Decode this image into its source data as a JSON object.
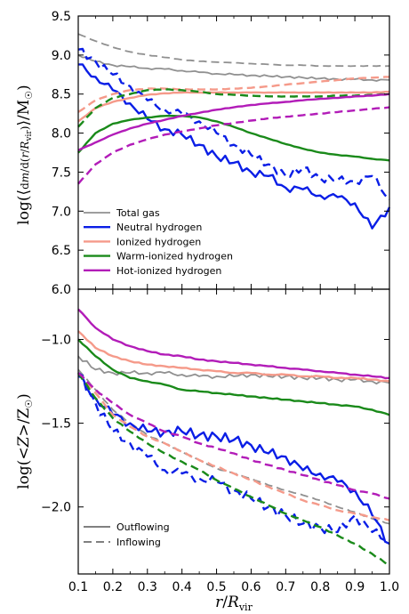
{
  "chart_data": [
    {
      "type": "line",
      "panel": "top",
      "ylabel": "log(⟨dm/d(r/R_vir)⟩/M☉)",
      "ylim": [
        6.0,
        9.5
      ],
      "yticks": [
        "6.0",
        "6.5",
        "7.0",
        "7.5",
        "8.0",
        "8.5",
        "9.0",
        "9.5"
      ],
      "x": [
        0.1,
        0.15,
        0.2,
        0.25,
        0.3,
        0.35,
        0.4,
        0.45,
        0.5,
        0.55,
        0.6,
        0.65,
        0.7,
        0.75,
        0.8,
        0.85,
        0.9,
        0.95,
        1.0
      ],
      "legend": {
        "placement": "lower-left",
        "entries": [
          {
            "label": "Total gas",
            "color": "#909090"
          },
          {
            "label": "Neutral hydrogen",
            "color": "#0a1ee6"
          },
          {
            "label": "Ionized hydrogen",
            "color": "#f59a8a"
          },
          {
            "label": "Warm-ionized hydrogen",
            "color": "#1a8a1a"
          },
          {
            "label": "Hot-ionized hydrogen",
            "color": "#b21cb8"
          }
        ]
      },
      "series": [
        {
          "name": "Total gas",
          "style": "solid",
          "color": "#909090",
          "values": [
            9.0,
            8.92,
            8.87,
            8.85,
            8.83,
            8.82,
            8.8,
            8.78,
            8.76,
            8.75,
            8.74,
            8.73,
            8.72,
            8.71,
            8.7,
            8.69,
            8.69,
            8.68,
            8.68
          ]
        },
        {
          "style": "dashed",
          "color": "#909090",
          "values": [
            9.27,
            9.18,
            9.1,
            9.04,
            9.0,
            8.97,
            8.94,
            8.92,
            8.91,
            8.9,
            8.89,
            8.88,
            8.87,
            8.87,
            8.86,
            8.86,
            8.86,
            8.86,
            8.86
          ]
        },
        {
          "name": "Neutral hydrogen",
          "style": "solid",
          "color": "#0a1ee6",
          "values": [
            8.88,
            8.72,
            8.55,
            8.38,
            8.18,
            8.05,
            7.98,
            7.85,
            7.7,
            7.62,
            7.5,
            7.45,
            7.3,
            7.28,
            7.2,
            7.18,
            7.1,
            6.78,
            7.05
          ]
        },
        {
          "style": "dashed",
          "color": "#0a1ee6",
          "values": [
            9.07,
            8.92,
            8.75,
            8.6,
            8.42,
            8.3,
            8.25,
            8.15,
            8.0,
            7.85,
            7.72,
            7.6,
            7.45,
            7.55,
            7.42,
            7.4,
            7.38,
            7.45,
            7.15
          ]
        },
        {
          "name": "Ionized hydrogen",
          "style": "solid",
          "color": "#f59a8a",
          "values": [
            8.15,
            8.32,
            8.4,
            8.45,
            8.49,
            8.51,
            8.52,
            8.52,
            8.52,
            8.52,
            8.52,
            8.52,
            8.52,
            8.52,
            8.52,
            8.52,
            8.52,
            8.52,
            8.53
          ]
        },
        {
          "style": "dashed",
          "color": "#f59a8a",
          "values": [
            8.27,
            8.42,
            8.5,
            8.55,
            8.57,
            8.57,
            8.56,
            8.56,
            8.56,
            8.57,
            8.58,
            8.6,
            8.62,
            8.64,
            8.66,
            8.68,
            8.7,
            8.71,
            8.72
          ]
        },
        {
          "name": "Warm-ionized hydrogen",
          "style": "solid",
          "color": "#1a8a1a",
          "values": [
            7.75,
            8.0,
            8.12,
            8.17,
            8.2,
            8.22,
            8.22,
            8.2,
            8.15,
            8.08,
            8.0,
            7.93,
            7.86,
            7.8,
            7.75,
            7.72,
            7.7,
            7.67,
            7.65
          ]
        },
        {
          "style": "dashed",
          "color": "#1a8a1a",
          "values": [
            8.08,
            8.32,
            8.45,
            8.5,
            8.55,
            8.56,
            8.55,
            8.53,
            8.5,
            8.49,
            8.48,
            8.47,
            8.47,
            8.47,
            8.47,
            8.48,
            8.48,
            8.49,
            8.5
          ]
        },
        {
          "name": "Hot-ionized hydrogen",
          "style": "solid",
          "color": "#b21cb8",
          "values": [
            7.78,
            7.88,
            7.98,
            8.06,
            8.12,
            8.17,
            8.22,
            8.26,
            8.3,
            8.33,
            8.36,
            8.38,
            8.4,
            8.42,
            8.44,
            8.45,
            8.47,
            8.48,
            8.5
          ]
        },
        {
          "style": "dashed",
          "color": "#b21cb8",
          "values": [
            7.35,
            7.6,
            7.75,
            7.85,
            7.92,
            7.98,
            8.02,
            8.06,
            8.1,
            8.13,
            8.16,
            8.19,
            8.21,
            8.23,
            8.25,
            8.27,
            8.29,
            8.31,
            8.33
          ]
        }
      ]
    },
    {
      "type": "line",
      "panel": "bottom",
      "xlabel": "r/R_vir",
      "ylabel": "log(<Z>/Z☉)",
      "ylim": [
        -2.4,
        -0.7
      ],
      "xlim": [
        0.1,
        1.0
      ],
      "yticks": [
        "−1.0",
        "−1.5",
        "−2.0"
      ],
      "xticks": [
        "0.1",
        "0.2",
        "0.3",
        "0.4",
        "0.5",
        "0.6",
        "0.7",
        "0.8",
        "0.9",
        "1.0"
      ],
      "x": [
        0.1,
        0.15,
        0.2,
        0.25,
        0.3,
        0.35,
        0.4,
        0.45,
        0.5,
        0.55,
        0.6,
        0.65,
        0.7,
        0.75,
        0.8,
        0.85,
        0.9,
        0.95,
        1.0
      ],
      "legend": {
        "placement": "lower-left",
        "entries": [
          {
            "label": "Outflowing",
            "style": "solid"
          },
          {
            "label": "Inflowing",
            "style": "dashed"
          }
        ]
      },
      "series": [
        {
          "style": "solid",
          "color": "#909090",
          "values": [
            -1.1,
            -1.18,
            -1.2,
            -1.2,
            -1.2,
            -1.2,
            -1.21,
            -1.22,
            -1.22,
            -1.22,
            -1.21,
            -1.22,
            -1.22,
            -1.23,
            -1.23,
            -1.24,
            -1.24,
            -1.25,
            -1.26
          ]
        },
        {
          "style": "dashed",
          "color": "#909090",
          "values": [
            -1.18,
            -1.3,
            -1.42,
            -1.5,
            -1.57,
            -1.62,
            -1.67,
            -1.72,
            -1.77,
            -1.8,
            -1.83,
            -1.87,
            -1.9,
            -1.93,
            -1.96,
            -2.0,
            -2.03,
            -2.07,
            -2.1
          ]
        },
        {
          "style": "solid",
          "color": "#0a1ee6",
          "values": [
            -1.22,
            -1.35,
            -1.45,
            -1.5,
            -1.55,
            -1.55,
            -1.55,
            -1.57,
            -1.58,
            -1.6,
            -1.63,
            -1.68,
            -1.7,
            -1.78,
            -1.8,
            -1.85,
            -1.9,
            -2.05,
            -2.22
          ]
        },
        {
          "style": "dashed",
          "color": "#0a1ee6",
          "values": [
            -1.2,
            -1.38,
            -1.55,
            -1.62,
            -1.7,
            -1.78,
            -1.8,
            -1.83,
            -1.85,
            -1.9,
            -1.95,
            -2.0,
            -2.05,
            -2.1,
            -2.12,
            -2.15,
            -2.05,
            -2.15,
            -2.2
          ]
        },
        {
          "style": "solid",
          "color": "#f59a8a",
          "values": [
            -0.95,
            -1.05,
            -1.1,
            -1.13,
            -1.15,
            -1.16,
            -1.17,
            -1.18,
            -1.19,
            -1.2,
            -1.2,
            -1.21,
            -1.21,
            -1.22,
            -1.22,
            -1.23,
            -1.23,
            -1.24,
            -1.25
          ]
        },
        {
          "style": "dashed",
          "color": "#f59a8a",
          "values": [
            -1.2,
            -1.32,
            -1.45,
            -1.52,
            -1.58,
            -1.62,
            -1.67,
            -1.72,
            -1.76,
            -1.8,
            -1.84,
            -1.88,
            -1.92,
            -1.96,
            -1.99,
            -2.02,
            -2.04,
            -2.06,
            -2.08
          ]
        },
        {
          "style": "solid",
          "color": "#1a8a1a",
          "values": [
            -1.0,
            -1.1,
            -1.18,
            -1.23,
            -1.25,
            -1.27,
            -1.3,
            -1.31,
            -1.32,
            -1.33,
            -1.34,
            -1.35,
            -1.36,
            -1.37,
            -1.38,
            -1.39,
            -1.4,
            -1.42,
            -1.45
          ]
        },
        {
          "style": "dashed",
          "color": "#1a8a1a",
          "values": [
            -1.2,
            -1.35,
            -1.47,
            -1.55,
            -1.62,
            -1.68,
            -1.73,
            -1.78,
            -1.84,
            -1.89,
            -1.94,
            -1.99,
            -2.04,
            -2.08,
            -2.12,
            -2.17,
            -2.22,
            -2.28,
            -2.35
          ]
        },
        {
          "style": "solid",
          "color": "#b21cb8",
          "values": [
            -0.82,
            -0.93,
            -1.0,
            -1.04,
            -1.07,
            -1.09,
            -1.1,
            -1.12,
            -1.13,
            -1.14,
            -1.15,
            -1.16,
            -1.17,
            -1.18,
            -1.19,
            -1.2,
            -1.21,
            -1.22,
            -1.23
          ]
        },
        {
          "style": "dashed",
          "color": "#b21cb8",
          "values": [
            -1.2,
            -1.3,
            -1.38,
            -1.45,
            -1.5,
            -1.55,
            -1.58,
            -1.62,
            -1.65,
            -1.68,
            -1.72,
            -1.75,
            -1.78,
            -1.81,
            -1.84,
            -1.87,
            -1.9,
            -1.92,
            -1.95
          ]
        }
      ]
    }
  ]
}
